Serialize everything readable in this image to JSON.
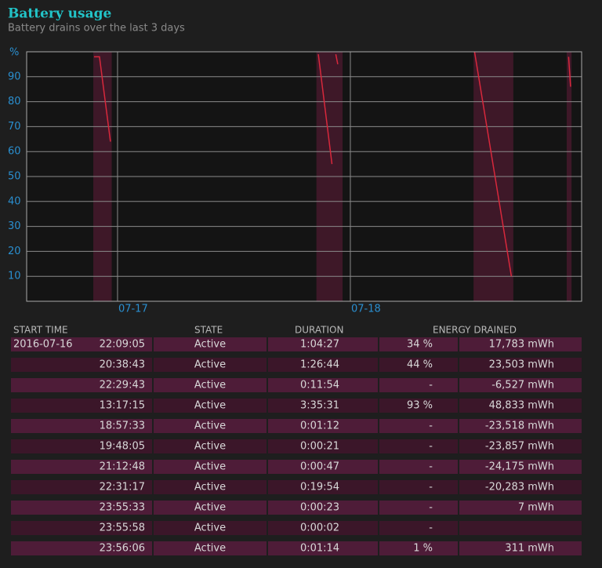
{
  "chart_data": {
    "type": "line",
    "title": "Battery usage",
    "subtitle": "Battery drains over the last 3 days",
    "ylabel": "%",
    "ylim": [
      0,
      100
    ],
    "yticks": [
      10,
      20,
      30,
      40,
      50,
      60,
      70,
      80,
      90
    ],
    "xlim": [
      -9.37,
      47.84
    ],
    "xticks": [
      {
        "value": 0,
        "label": "07-17"
      },
      {
        "value": 24,
        "label": "07-18"
      }
    ],
    "grid": true,
    "x": [
      -2.42,
      -1.86,
      -0.73,
      null,
      20.7,
      22.1,
      null,
      22.5,
      22.7,
      null,
      36.8,
      40.6,
      null,
      46.5,
      46.7
    ],
    "series": [
      {
        "color": "#d8283c",
        "values": [
          98,
          98,
          64,
          null,
          99,
          55,
          null,
          99,
          95,
          null,
          100,
          10,
          null,
          98,
          86
        ]
      }
    ],
    "bands": [
      [
        -2.5,
        -0.6
      ],
      [
        20.5,
        23.2
      ],
      [
        36.7,
        40.8
      ],
      [
        46.3,
        46.8
      ]
    ],
    "band_color": "#5a1a36"
  },
  "table": {
    "headers": [
      "START TIME",
      "STATE",
      "DURATION",
      "ENERGY DRAINED"
    ],
    "rows": [
      [
        "2016-07-16",
        "22:09:05",
        "Active",
        "1:04:27",
        "34 %",
        "17,783 mWh"
      ],
      [
        null,
        "20:38:43",
        "Active",
        "1:26:44",
        "44 %",
        "23,503 mWh"
      ],
      [
        null,
        "22:29:43",
        "Active",
        "0:11:54",
        "-",
        "-6,527 mWh"
      ],
      [
        null,
        "13:17:15",
        "Active",
        "3:35:31",
        "93 %",
        "48,833 mWh"
      ],
      [
        null,
        "18:57:33",
        "Active",
        "0:01:12",
        "-",
        "-23,518 mWh"
      ],
      [
        null,
        "19:48:05",
        "Active",
        "0:00:21",
        "-",
        "-23,857 mWh"
      ],
      [
        null,
        "21:12:48",
        "Active",
        "0:00:47",
        "-",
        "-24,175 mWh"
      ],
      [
        null,
        "22:31:17",
        "Active",
        "0:19:54",
        "-",
        "-20,283 mWh"
      ],
      [
        null,
        "23:55:33",
        "Active",
        "0:00:23",
        "-",
        "7 mWh"
      ],
      [
        null,
        "23:55:58",
        "Active",
        "0:00:02",
        "-",
        null
      ],
      [
        null,
        "23:56:06",
        "Active",
        "0:01:14",
        "1 %",
        "311 mWh"
      ]
    ]
  }
}
